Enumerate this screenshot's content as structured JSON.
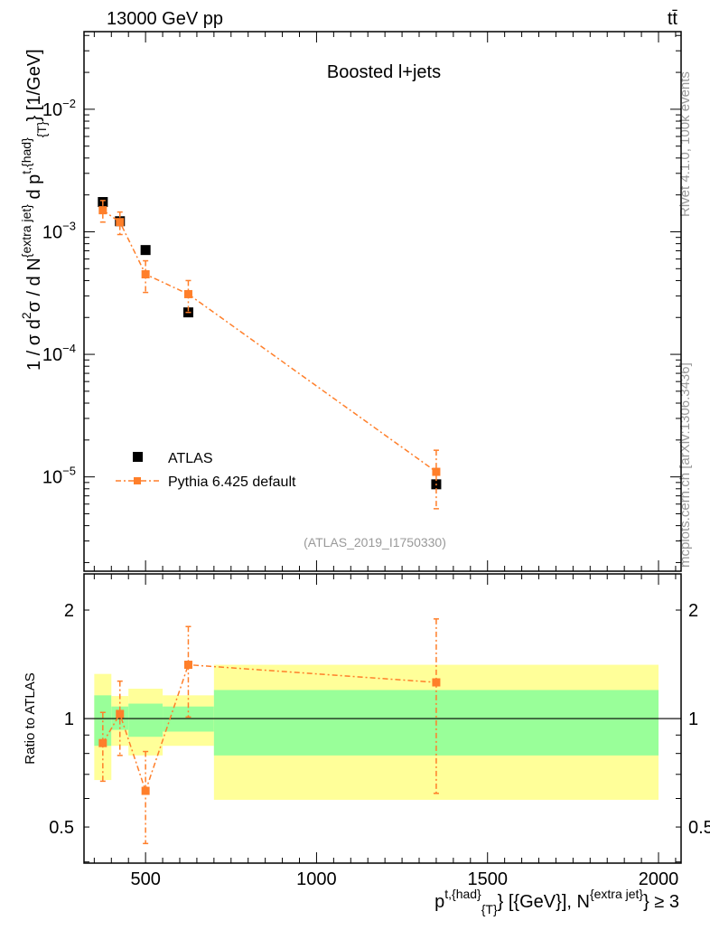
{
  "header": {
    "energy_label": "13000 GeV pp",
    "process_label": "tt̄",
    "analysis_title": "Boosted l+jets",
    "analysis_id": "(ATLAS_2019_I1750330)",
    "rivet_label": "Rivet 4.1.0,  100k events",
    "site_label": "mcplots.cern.ch [arXiv:1306.3436]"
  },
  "colors": {
    "data": "#000000",
    "mc": "#ff7f2a",
    "band_outer": "#ffff99",
    "band_inner": "#99ff99"
  },
  "chart_data": [
    {
      "type": "scatter",
      "title": "Boosted l+jets",
      "yscale": "log",
      "xlim": [
        320,
        2066
      ],
      "ylim": [
        1.7e-06,
        0.043
      ],
      "ylabel_segments": [
        {
          "t": "1 / σ d",
          "s": ""
        },
        {
          "t": "2",
          "s": "sup"
        },
        {
          "t": "σ / d N",
          "s": ""
        },
        {
          "t": "{extra jet}",
          "s": "sup"
        },
        {
          "t": " d p",
          "s": ""
        },
        {
          "t": "t,{had}",
          "s": "sup"
        },
        {
          "t": "{T}",
          "s": "sub"
        },
        {
          "t": "} [1/GeV]",
          "s": ""
        }
      ],
      "yticks": [
        {
          "v": 1e-05,
          "m": "10",
          "e": "−5"
        },
        {
          "v": 0.0001,
          "m": "10",
          "e": "−4"
        },
        {
          "v": 0.001,
          "m": "10",
          "e": "−3"
        },
        {
          "v": 0.01,
          "m": "10",
          "e": "−2"
        }
      ],
      "legend": {
        "position": "bottom-left",
        "entries": [
          "ATLAS",
          "Pythia 6.425 default"
        ]
      },
      "bins": [
        [
          350,
          400
        ],
        [
          400,
          450
        ],
        [
          450,
          550
        ],
        [
          550,
          700
        ],
        [
          700,
          2000
        ]
      ],
      "x": [
        375,
        425,
        500,
        625,
        1350
      ],
      "series": [
        {
          "name": "ATLAS",
          "values": [
            0.00175,
            0.00122,
            0.00071,
            0.00022,
            8.7e-06
          ],
          "err_low": [
            0.0016,
            0.00115,
            0.00069,
            0.00021,
            8.1e-06
          ],
          "err_high": [
            0.0019,
            0.0013,
            0.00073,
            0.00023,
            9.3e-06
          ]
        },
        {
          "name": "Pythia 6.425 default",
          "values": [
            0.0015,
            0.0012,
            0.00045,
            0.00031,
            1.1e-05
          ],
          "err_low": [
            0.0012,
            0.00095,
            0.00032,
            0.00022,
            5.5e-06
          ],
          "err_high": [
            0.0018,
            0.00145,
            0.00058,
            0.0004,
            1.65e-05
          ]
        }
      ]
    },
    {
      "type": "scatter",
      "yscale": "log",
      "xlim": [
        320,
        2066
      ],
      "ylim": [
        0.397,
        2.52
      ],
      "ylabel": "Ratio to ATLAS",
      "yticks": [
        {
          "v": 0.5,
          "l": "0.5"
        },
        {
          "v": 1,
          "l": "1"
        },
        {
          "v": 2,
          "l": "2"
        }
      ],
      "xticks": [
        {
          "v": 500,
          "l": "500"
        },
        {
          "v": 1000,
          "l": "1000"
        },
        {
          "v": 1500,
          "l": "1500"
        },
        {
          "v": 2000,
          "l": "2000"
        }
      ],
      "xlabel_segments": [
        {
          "t": "p",
          "s": ""
        },
        {
          "t": "t,{had}",
          "s": "sup"
        },
        {
          "t": "{T}",
          "s": "sub"
        },
        {
          "t": "} [{GeV}], N",
          "s": ""
        },
        {
          "t": "{extra jet}",
          "s": "sup"
        },
        {
          "t": "} ≥ 3",
          "s": ""
        }
      ],
      "bands": {
        "outer_low": [
          0.675,
          0.84,
          0.79,
          0.84,
          0.595
        ],
        "outer_high": [
          1.33,
          1.155,
          1.21,
          1.16,
          1.41
        ],
        "inner_low": [
          0.84,
          0.93,
          0.89,
          0.92,
          0.79
        ],
        "inner_high": [
          1.16,
          1.08,
          1.1,
          1.08,
          1.2
        ]
      },
      "series": [
        {
          "name": "Pythia 6.425 default / ATLAS",
          "values": [
            0.855,
            1.03,
            0.63,
            1.41,
            1.26
          ],
          "err_low": [
            0.67,
            0.79,
            0.45,
            1.01,
            0.62
          ],
          "err_high": [
            1.04,
            1.27,
            0.81,
            1.8,
            1.89
          ]
        }
      ]
    }
  ]
}
